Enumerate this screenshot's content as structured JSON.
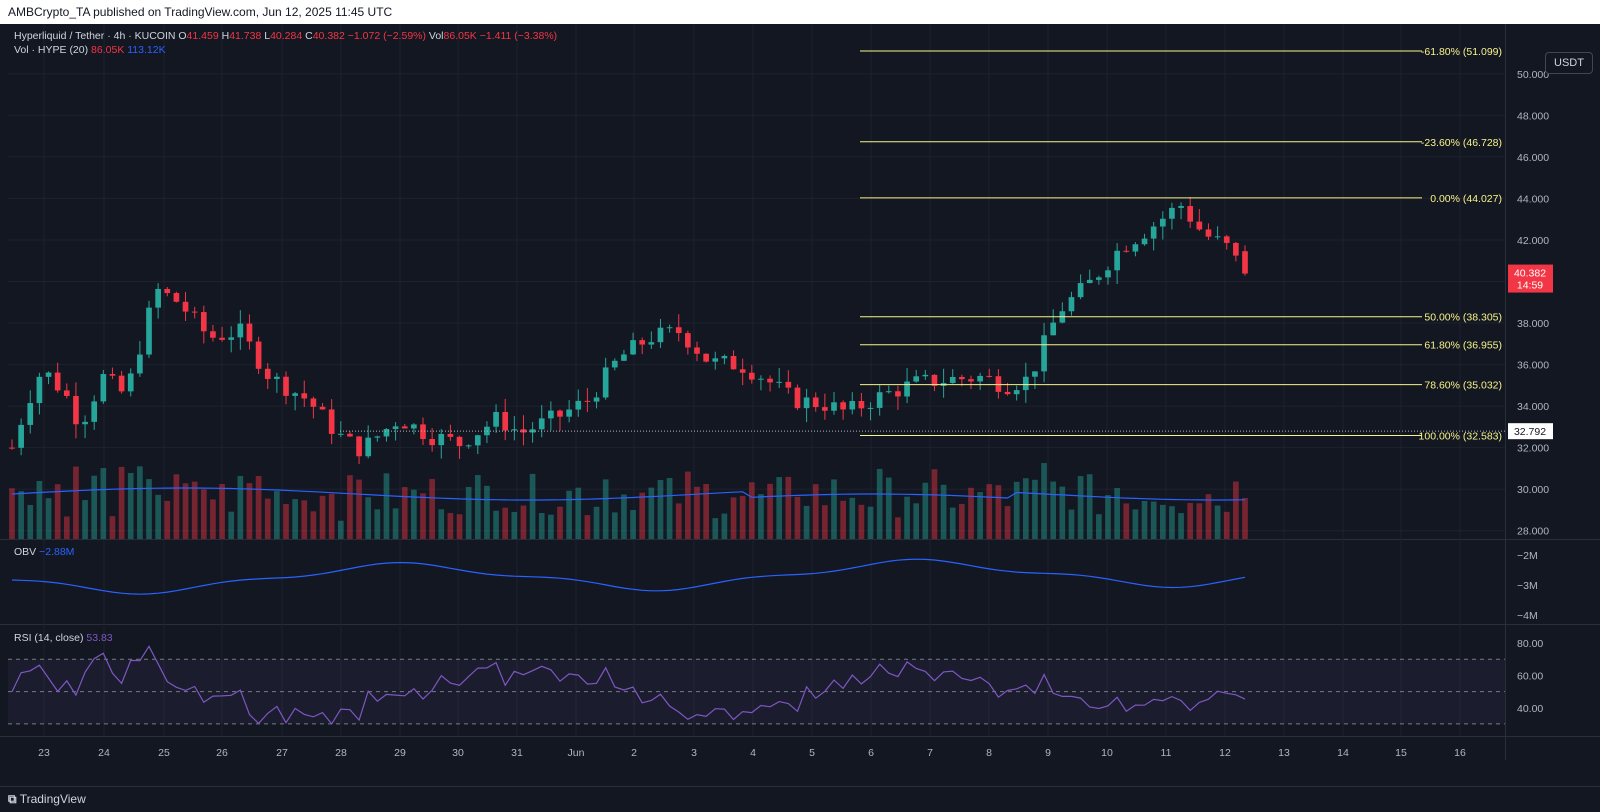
{
  "header": {
    "publish_line": "AMBCrypto_TA published on TradingView.com, Jun 12, 2025 11:45 UTC"
  },
  "symbol": {
    "name": "Hyperliquid / Tether · 4h · KUCOIN",
    "open_label": "O",
    "open": "41.459",
    "high_label": "H",
    "high": "41.738",
    "low_label": "L",
    "low": "40.284",
    "close_label": "C",
    "close": "40.382",
    "change": "−1.072 (−2.59%)",
    "vol_label": "Vol",
    "vol": "86.05K",
    "vol_change": "−1.411 (−3.38%)"
  },
  "volume_indicator": {
    "label": "Vol · HYPE (20)",
    "value": "86.05K",
    "ma_value": "113.12K"
  },
  "obv": {
    "label": "OBV",
    "value": "−2.88M"
  },
  "rsi": {
    "label": "RSI (14, close)",
    "value": "53.83"
  },
  "currency_button": "USDT",
  "price_scale": {
    "ticks": [
      "50.000",
      "48.000",
      "46.000",
      "44.000",
      "42.000",
      "40.000",
      "38.000",
      "36.000",
      "34.000",
      "32.000",
      "30.000",
      "28.000"
    ]
  },
  "current_price": {
    "value": "40.382",
    "countdown": "14:59",
    "color": "#f23645"
  },
  "dotted_level": {
    "value": "32.792"
  },
  "obv_scale": [
    "−2M",
    "−3M",
    "−4M"
  ],
  "rsi_scale": [
    "80.00",
    "60.00",
    "40.00"
  ],
  "fib_levels": [
    {
      "label": "-61.80% (51.099)",
      "price": 51.099
    },
    {
      "label": "-23.60% (46.728)",
      "price": 46.728
    },
    {
      "label": "0.00% (44.027)",
      "price": 44.027
    },
    {
      "label": "50.00% (38.305)",
      "price": 38.305
    },
    {
      "label": "61.80% (36.955)",
      "price": 36.955
    },
    {
      "label": "78.60% (35.032)",
      "price": 35.032
    },
    {
      "label": "100.00% (32.583)",
      "price": 32.583
    }
  ],
  "time_axis": [
    "23",
    "24",
    "25",
    "26",
    "27",
    "28",
    "29",
    "30",
    "31",
    "Jun",
    "2",
    "3",
    "4",
    "5",
    "6",
    "7",
    "8",
    "9",
    "10",
    "11",
    "12",
    "13",
    "14",
    "15",
    "16"
  ],
  "colors": {
    "up": "#26a69a",
    "down": "#f23645",
    "fib": "#f7f38a",
    "obv": "#2962ff",
    "rsi": "#7e57c2",
    "background": "#131722"
  },
  "footer": {
    "brand": "TradingView"
  },
  "chart_data": {
    "type": "candlestick",
    "timeframe": "4h",
    "ylim": [
      28,
      51.5
    ],
    "price_anchors": [
      {
        "date": "May 23",
        "price": 32.5
      },
      {
        "date": "May 23",
        "price": 35.5
      },
      {
        "date": "May 26",
        "price": 39.5
      },
      {
        "date": "May 28",
        "price": 35.5
      },
      {
        "date": "May 29",
        "price": 33.5
      },
      {
        "date": "May 30",
        "price": 31.8
      },
      {
        "date": "Jun 2",
        "price": 33.0
      },
      {
        "date": "Jun 3",
        "price": 37.5
      },
      {
        "date": "Jun 5",
        "price": 34.0
      },
      {
        "date": "Jun 6",
        "price": 33.5
      },
      {
        "date": "Jun 9",
        "price": 35.0
      },
      {
        "date": "Jun 10",
        "price": 41.0
      },
      {
        "date": "Jun 11",
        "price": 44.0
      },
      {
        "date": "Jun 12",
        "price": 40.38
      }
    ],
    "rsi_levels": [
      70,
      50,
      30
    ]
  }
}
